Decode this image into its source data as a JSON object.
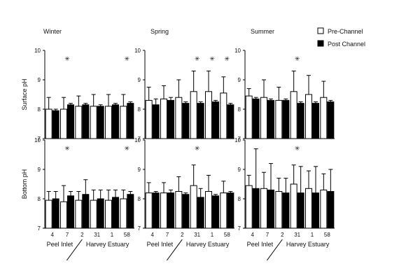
{
  "legend": {
    "position": "top-right",
    "items": [
      {
        "label": "Pre-Channel",
        "color": "#ffffff"
      },
      {
        "label": "Post Channel",
        "color": "#000000"
      }
    ]
  },
  "site_groups": [
    {
      "label": "Peel Inlet"
    },
    {
      "label": "Harvey Estuary"
    }
  ],
  "chart_data": [
    {
      "type": "bar",
      "title": "Winter",
      "ylabel": "Surface pH",
      "ylim": [
        7,
        10
      ],
      "yticks": [
        7,
        8,
        9,
        10
      ],
      "categories": [
        "4",
        "7",
        "2",
        "31",
        "1",
        "58"
      ],
      "series": [
        {
          "name": "Pre-Channel",
          "color": "#ffffff",
          "values": [
            8.0,
            8.0,
            8.1,
            8.1,
            8.1,
            8.1
          ],
          "error": [
            0.4,
            0.4,
            0.35,
            0.4,
            0.4,
            0.4
          ]
        },
        {
          "name": "Post Channel",
          "color": "#000000",
          "values": [
            7.95,
            8.15,
            8.15,
            8.1,
            8.15,
            8.2
          ],
          "error": [
            0.05,
            0.05,
            0.05,
            0.05,
            0.05,
            0.05
          ]
        }
      ],
      "significant": [
        "7",
        "58"
      ]
    },
    {
      "type": "bar",
      "title": "Spring",
      "ylabel": "",
      "ylim": [
        7,
        10
      ],
      "yticks": [
        7,
        8,
        9,
        10
      ],
      "categories": [
        "4",
        "7",
        "2",
        "31",
        "1",
        "58"
      ],
      "series": [
        {
          "name": "Pre-Channel",
          "color": "#ffffff",
          "values": [
            8.3,
            8.35,
            8.4,
            8.6,
            8.6,
            8.55
          ],
          "error": [
            0.45,
            0.45,
            0.6,
            0.7,
            0.7,
            0.55
          ]
        },
        {
          "name": "Post Channel",
          "color": "#000000",
          "values": [
            8.15,
            8.3,
            8.2,
            8.2,
            8.25,
            8.15
          ],
          "error": [
            0.2,
            0.1,
            0.05,
            0.05,
            0.05,
            0.05
          ]
        }
      ],
      "significant": [
        "31",
        "1",
        "58"
      ]
    },
    {
      "type": "bar",
      "title": "Summer",
      "ylabel": "",
      "ylim": [
        7,
        10
      ],
      "yticks": [
        7,
        8,
        9,
        10
      ],
      "categories": [
        "4",
        "7",
        "2",
        "31",
        "1",
        "58"
      ],
      "series": [
        {
          "name": "Pre-Channel",
          "color": "#ffffff",
          "values": [
            8.45,
            8.4,
            8.3,
            8.6,
            8.5,
            8.4
          ],
          "error": [
            0.25,
            0.6,
            0.45,
            0.7,
            0.65,
            0.55
          ]
        },
        {
          "name": "Post Channel",
          "color": "#000000",
          "values": [
            8.35,
            8.3,
            8.3,
            8.2,
            8.2,
            8.25
          ],
          "error": [
            0.05,
            0.05,
            0.05,
            0.05,
            0.05,
            0.05
          ]
        }
      ],
      "significant": [
        "31"
      ]
    },
    {
      "type": "bar",
      "title": "",
      "ylabel": "Bottom pH",
      "ylim": [
        7,
        10
      ],
      "yticks": [
        7,
        8,
        9,
        10
      ],
      "categories": [
        "4",
        "7",
        "2",
        "31",
        "1",
        "58"
      ],
      "series": [
        {
          "name": "Pre-Channel",
          "color": "#ffffff",
          "values": [
            7.95,
            7.9,
            7.95,
            7.95,
            7.95,
            8.0
          ],
          "error": [
            0.3,
            0.55,
            0.3,
            0.35,
            0.35,
            0.3
          ]
        },
        {
          "name": "Post Channel",
          "color": "#000000",
          "values": [
            8.0,
            8.1,
            8.15,
            8.0,
            8.05,
            8.15
          ],
          "error": [
            0.25,
            0.15,
            0.5,
            0.3,
            0.25,
            0.1
          ]
        }
      ],
      "significant": [
        "7",
        "58"
      ]
    },
    {
      "type": "bar",
      "title": "",
      "ylabel": "",
      "ylim": [
        7,
        10
      ],
      "yticks": [
        7,
        8,
        9,
        10
      ],
      "categories": [
        "4",
        "7",
        "2",
        "31",
        "1",
        "58"
      ],
      "series": [
        {
          "name": "Pre-Channel",
          "color": "#ffffff",
          "values": [
            8.2,
            8.2,
            8.25,
            8.45,
            8.25,
            8.2
          ],
          "error": [
            0.35,
            0.35,
            0.5,
            0.7,
            0.55,
            0.4
          ]
        },
        {
          "name": "Post Channel",
          "color": "#000000",
          "values": [
            8.2,
            8.2,
            8.15,
            8.05,
            8.1,
            8.2
          ],
          "error": [
            0.05,
            0.1,
            0.05,
            0.3,
            0.05,
            0.05
          ]
        }
      ],
      "significant": [
        "31"
      ]
    },
    {
      "type": "bar",
      "title": "",
      "ylabel": "",
      "ylim": [
        7,
        10
      ],
      "yticks": [
        7,
        8,
        9,
        10
      ],
      "categories": [
        "4",
        "7",
        "2",
        "31",
        "1",
        "58"
      ],
      "series": [
        {
          "name": "Pre-Channel",
          "color": "#ffffff",
          "values": [
            8.45,
            8.35,
            8.25,
            8.5,
            8.35,
            8.3
          ],
          "error": [
            0.35,
            0.55,
            0.45,
            0.65,
            0.6,
            0.55
          ]
        },
        {
          "name": "Post Channel",
          "color": "#000000",
          "values": [
            8.35,
            8.3,
            8.2,
            8.2,
            8.2,
            8.25
          ],
          "error": [
            1.35,
            0.9,
            0.5,
            0.9,
            0.9,
            0.75
          ]
        }
      ],
      "significant": [
        "31"
      ]
    }
  ]
}
